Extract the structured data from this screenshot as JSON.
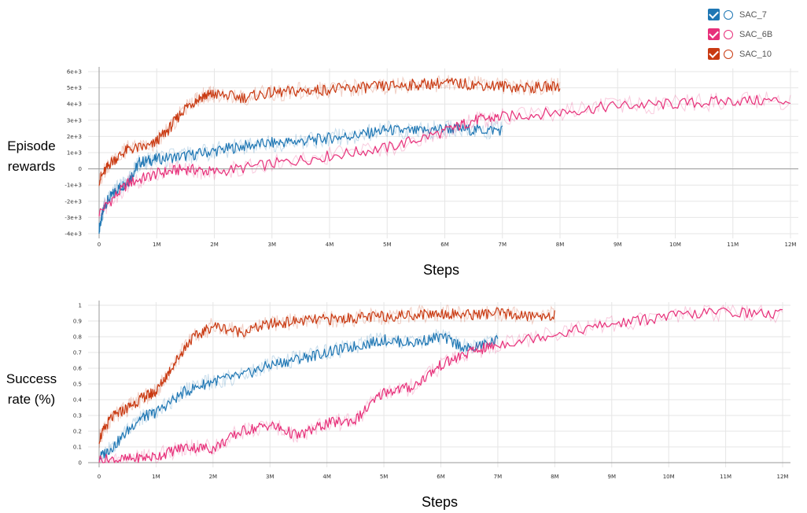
{
  "legend": {
    "items": [
      {
        "label": "SAC_7",
        "color": "#1f77b4"
      },
      {
        "label": "SAC_6B",
        "color": "#e7307a"
      },
      {
        "label": "SAC_10",
        "color": "#c93a12"
      }
    ]
  },
  "chart_data": [
    {
      "type": "line",
      "ylabel_line1": "Episode",
      "ylabel_line2": "rewards",
      "xlabel": "Steps",
      "xlim": [
        0,
        12000000
      ],
      "ylim": [
        -4000,
        6000
      ],
      "grid": true,
      "x_ticks": [
        "0",
        "1M",
        "2M",
        "3M",
        "4M",
        "5M",
        "6M",
        "7M",
        "8M",
        "9M",
        "10M",
        "11M",
        "12M"
      ],
      "y_ticks": [
        "-4e+3",
        "-3e+3",
        "-2e+3",
        "-1e+3",
        "0",
        "1e+3",
        "2e+3",
        "3e+3",
        "4e+3",
        "5e+3",
        "6e+3"
      ],
      "series": [
        {
          "name": "SAC_7",
          "color": "#1f77b4",
          "x": [
            0,
            100000,
            300000,
            500000,
            700000,
            1000000,
            1500000,
            2000000,
            2500000,
            3000000,
            3500000,
            4000000,
            4500000,
            5000000,
            5500000,
            6000000,
            6500000,
            7000000
          ],
          "y": [
            -3700,
            -2200,
            -1300,
            -800,
            400,
            600,
            800,
            1100,
            1400,
            1600,
            1700,
            1900,
            2100,
            2400,
            2300,
            2500,
            2400,
            2400
          ]
        },
        {
          "name": "SAC_6B",
          "color": "#e7307a",
          "x": [
            0,
            500000,
            1000000,
            1500000,
            2000000,
            3000000,
            4000000,
            5000000,
            6000000,
            6500000,
            7000000,
            8000000,
            9000000,
            10000000,
            11000000,
            12000000
          ],
          "y": [
            -2700,
            -900,
            -300,
            0,
            -200,
            300,
            800,
            1300,
            2300,
            3000,
            3200,
            3500,
            3900,
            4000,
            4200,
            4200
          ]
        },
        {
          "name": "SAC_10",
          "color": "#c93a12",
          "x": [
            0,
            200000,
            500000,
            900000,
            1200000,
            1500000,
            1800000,
            2000000,
            2500000,
            3000000,
            3500000,
            4000000,
            4500000,
            5000000,
            5500000,
            6000000,
            6500000,
            7000000,
            7500000,
            8000000
          ],
          "y": [
            -700,
            400,
            1200,
            1400,
            2400,
            3800,
            4500,
            4600,
            4400,
            4700,
            4800,
            4900,
            5000,
            5100,
            5200,
            5300,
            5200,
            5100,
            5000,
            5100
          ]
        }
      ]
    },
    {
      "type": "line",
      "ylabel_line1": "Success",
      "ylabel_line2": "rate (%)",
      "xlabel": "Steps",
      "xlim": [
        0,
        12000000
      ],
      "ylim": [
        0,
        1
      ],
      "grid": true,
      "x_ticks": [
        "0",
        "1M",
        "2M",
        "3M",
        "4M",
        "5M",
        "6M",
        "7M",
        "8M",
        "9M",
        "10M",
        "11M",
        "12M"
      ],
      "y_ticks": [
        "0",
        "0.1",
        "0.2",
        "0.3",
        "0.4",
        "0.5",
        "0.6",
        "0.7",
        "0.8",
        "0.9",
        "1"
      ],
      "series": [
        {
          "name": "SAC_7",
          "color": "#1f77b4",
          "x": [
            0,
            300000,
            700000,
            1000000,
            1500000,
            2000000,
            2500000,
            3000000,
            3500000,
            4000000,
            4500000,
            5000000,
            5500000,
            6000000,
            6500000,
            7000000
          ],
          "y": [
            0.03,
            0.12,
            0.28,
            0.32,
            0.45,
            0.52,
            0.55,
            0.62,
            0.66,
            0.7,
            0.74,
            0.78,
            0.76,
            0.8,
            0.72,
            0.78
          ]
        },
        {
          "name": "SAC_6B",
          "color": "#e7307a",
          "x": [
            0,
            500000,
            1000000,
            1500000,
            2000000,
            2500000,
            3000000,
            3500000,
            4000000,
            4500000,
            5000000,
            5500000,
            6000000,
            6500000,
            7000000,
            8000000,
            9000000,
            10000000,
            11000000,
            12000000
          ],
          "y": [
            0.02,
            0.02,
            0.04,
            0.1,
            0.09,
            0.2,
            0.24,
            0.17,
            0.25,
            0.27,
            0.45,
            0.48,
            0.62,
            0.7,
            0.75,
            0.82,
            0.88,
            0.93,
            0.96,
            0.94
          ]
        },
        {
          "name": "SAC_10",
          "color": "#c93a12",
          "x": [
            0,
            200000,
            500000,
            800000,
            1000000,
            1300000,
            1600000,
            2000000,
            2500000,
            3000000,
            3500000,
            4000000,
            4500000,
            5000000,
            5500000,
            6000000,
            6500000,
            7000000,
            7500000,
            8000000
          ],
          "y": [
            0.15,
            0.28,
            0.35,
            0.42,
            0.45,
            0.62,
            0.78,
            0.87,
            0.83,
            0.88,
            0.9,
            0.91,
            0.92,
            0.93,
            0.94,
            0.95,
            0.94,
            0.95,
            0.93,
            0.94
          ]
        }
      ]
    }
  ]
}
